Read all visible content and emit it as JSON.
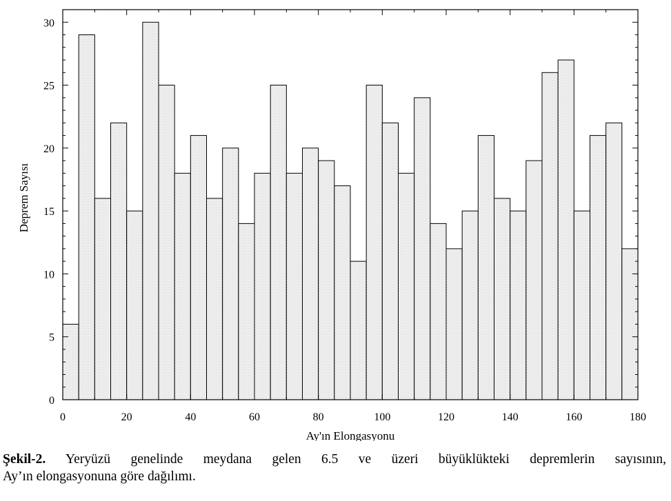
{
  "chart_data": {
    "type": "bar",
    "xlabel": "Ay'ın Elongasyonu",
    "ylabel": "Deprem Sayısı",
    "xlim": [
      0,
      180
    ],
    "ylim": [
      0,
      31
    ],
    "x_ticks": [
      0,
      20,
      40,
      60,
      80,
      100,
      120,
      140,
      160,
      180
    ],
    "y_ticks": [
      0,
      5,
      10,
      15,
      20,
      25,
      30
    ],
    "bin_width": 5,
    "bin_starts": [
      0,
      5,
      10,
      15,
      20,
      25,
      30,
      35,
      40,
      45,
      50,
      55,
      60,
      65,
      70,
      75,
      80,
      85,
      90,
      95,
      100,
      105,
      110,
      115,
      120,
      125,
      130,
      135,
      140,
      145,
      150,
      155,
      160,
      165,
      170,
      175
    ],
    "values": [
      6,
      29,
      16,
      22,
      15,
      30,
      25,
      18,
      21,
      16,
      20,
      14,
      18,
      25,
      18,
      20,
      19,
      17,
      11,
      25,
      22,
      18,
      24,
      14,
      12,
      15,
      21,
      16,
      15,
      19,
      26,
      27,
      15,
      21,
      22,
      12
    ],
    "bar_fill": "#eeeeee",
    "bar_stroke": "#000000",
    "grid": false
  },
  "caption": {
    "label": "Şekil-2.",
    "line1": "Yeryüzü genelinde meydana gelen 6.5 ve üzeri büyüklükteki depremlerin sayısının,",
    "line2": "Ay’ın elongasyonuna göre dağılımı."
  }
}
